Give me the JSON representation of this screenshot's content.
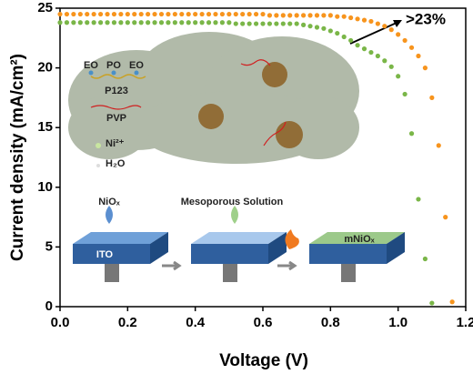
{
  "chart_data": {
    "type": "scatter",
    "x_label": "Voltage (V)",
    "y_label": "Current density (mA/cm²)",
    "xlim": [
      0,
      1.2
    ],
    "ylim": [
      0,
      25
    ],
    "xticks": [
      {
        "value": 0,
        "label": "0.0"
      },
      0.2,
      0.4,
      0.6,
      0.8,
      {
        "value": 1,
        "label": "1.0"
      },
      1.2
    ],
    "yticks": [
      0,
      5,
      10,
      15,
      20,
      25
    ],
    "x": [
      0,
      0.02,
      0.04,
      0.06,
      0.08,
      0.1,
      0.12,
      0.14,
      0.16,
      0.18,
      0.2,
      0.22,
      0.24,
      0.26,
      0.28,
      0.3,
      0.32,
      0.34,
      0.36,
      0.38,
      0.4,
      0.42,
      0.44,
      0.46,
      0.48,
      0.5,
      0.52,
      0.54,
      0.56,
      0.58,
      0.6,
      0.62,
      0.64,
      0.66,
      0.68,
      0.7,
      0.72,
      0.74,
      0.76,
      0.78,
      0.8,
      0.82,
      0.84,
      0.86,
      0.88,
      0.9,
      0.92,
      0.94,
      0.96,
      0.98,
      1,
      1.02,
      1.04,
      1.06,
      1.08,
      1.1,
      1.12,
      1.14,
      1.16
    ],
    "series": [
      {
        "color": "#f7941d",
        "values": [
          24.5,
          24.5,
          24.5,
          24.5,
          24.5,
          24.5,
          24.5,
          24.5,
          24.5,
          24.5,
          24.5,
          24.5,
          24.5,
          24.5,
          24.5,
          24.5,
          24.5,
          24.5,
          24.5,
          24.5,
          24.5,
          24.5,
          24.5,
          24.5,
          24.5,
          24.5,
          24.5,
          24.5,
          24.5,
          24.5,
          24.5,
          24.4,
          24.4,
          24.4,
          24.4,
          24.4,
          24.4,
          24.4,
          24.4,
          24.4,
          24.4,
          24.3,
          24.3,
          24.2,
          24.1,
          24.0,
          23.9,
          23.7,
          23.5,
          23.2,
          22.8,
          22.3,
          21.7,
          21.0,
          20.0,
          17.5,
          13.5,
          7.5,
          0.4
        ]
      },
      {
        "color": "#7ab648",
        "values": [
          23.8,
          23.8,
          23.8,
          23.8,
          23.8,
          23.8,
          23.8,
          23.8,
          23.8,
          23.8,
          23.8,
          23.8,
          23.8,
          23.8,
          23.8,
          23.8,
          23.8,
          23.8,
          23.8,
          23.8,
          23.8,
          23.8,
          23.8,
          23.8,
          23.8,
          23.8,
          23.7,
          23.7,
          23.7,
          23.7,
          23.7,
          23.7,
          23.7,
          23.7,
          23.7,
          23.7,
          23.6,
          23.5,
          23.4,
          23.3,
          23.1,
          22.9,
          22.6,
          22.3,
          21.9,
          21.6,
          21.3,
          21.0,
          20.6,
          20.1,
          19.3,
          17.8,
          14.5,
          9.0,
          4.0,
          0.3,
          null,
          null,
          null
        ]
      }
    ],
    "annotations": [
      ">23%",
      "EO",
      "PO",
      "EO",
      "P123",
      "PVP",
      "Ni²⁺",
      "H₂O",
      "NiOₓ",
      "Mesoporous Solution",
      "ITO",
      "mNiOₓ"
    ]
  }
}
